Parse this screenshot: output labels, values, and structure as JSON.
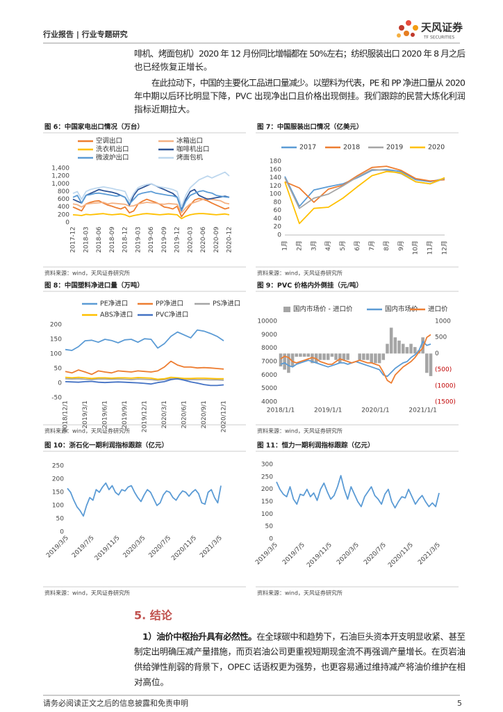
{
  "header": {
    "left": "行业报告 | 行业专题研究",
    "logo_cn": "天风证券",
    "logo_en": "TF SECURITIES"
  },
  "paragraphs": [
    [
      "啡机、烤面包机）2020 年 12 月份同比增幅都在 50%左右；纺织服装出口 2020 年 8 月之后",
      "也已经恢复正增长。"
    ],
    [
      "在此拉动下，中国的主要化工品进口量减少。以塑料为代表，PE 和 PP 净进口量从 2020",
      "年中期以后环比明显下降，PVC 出现净出口且价格出现倒挂。我们跟踪的民营大炼化利润",
      "指标近期拉大。"
    ]
  ],
  "chart_data": [
    {
      "type": "line",
      "title": "图 6：中国家电出口情况（万台）",
      "source": "资料来源：wind，天风证券研究所",
      "categories": [
        "2017-12",
        null,
        null,
        "2018-03",
        null,
        null,
        "2018-06",
        null,
        null,
        "2018-09",
        null,
        null,
        "2018-12",
        null,
        null,
        "2019-03",
        null,
        null,
        "2019-06",
        null,
        null,
        "2019-09",
        null,
        null,
        "2019-12",
        null,
        null,
        "2020-03",
        null,
        null,
        "2020-06",
        null,
        null,
        "2020-09",
        null,
        null,
        "2020-12"
      ],
      "ylim": [
        0,
        1400
      ],
      "yticks": [
        0,
        200,
        400,
        600,
        800,
        {
          "value": 1000,
          "label": "1,000"
        },
        {
          "value": 1200,
          "label": "1,200"
        },
        {
          "value": 1400,
          "label": "1,400"
        }
      ],
      "series": [
        {
          "name": "空调出口",
          "color": "#ed7d31",
          "values": [
            400,
            350,
            300,
            480,
            520,
            550,
            560,
            500,
            450,
            420,
            380,
            350,
            400,
            250,
            300,
            480,
            550,
            600,
            560,
            520,
            470,
            400,
            380,
            350,
            420,
            150,
            300,
            450,
            580,
            620,
            600,
            560,
            500,
            450,
            400,
            350,
            380
          ]
        },
        {
          "name": "冰箱出口",
          "color": "#f4b183",
          "values": [
            480,
            460,
            400,
            470,
            490,
            500,
            510,
            520,
            480,
            500,
            490,
            480,
            470,
            420,
            430,
            480,
            500,
            520,
            510,
            500,
            480,
            470,
            490,
            480,
            470,
            250,
            380,
            480,
            520,
            560,
            600,
            620,
            600,
            580,
            560,
            500,
            480
          ]
        },
        {
          "name": "洗衣机出口",
          "color": "#ffc000",
          "values": [
            200,
            190,
            180,
            210,
            200,
            210,
            220,
            230,
            210,
            200,
            210,
            220,
            200,
            150,
            180,
            200,
            220,
            230,
            220,
            210,
            200,
            210,
            220,
            210,
            200,
            100,
            160,
            200,
            220,
            230,
            230,
            220,
            210,
            200,
            210,
            220,
            200
          ]
        },
        {
          "name": "咖啡机出口",
          "color": "#2f5597",
          "values": [
            600,
            550,
            500,
            700,
            750,
            800,
            850,
            820,
            800,
            780,
            750,
            700,
            650,
            450,
            700,
            850,
            900,
            950,
            1000,
            950,
            900,
            850,
            800,
            750,
            650,
            350,
            600,
            800,
            850,
            700,
            650,
            600,
            620,
            640,
            660,
            680,
            650
          ]
        },
        {
          "name": "微波炉出口",
          "color": "#5b9bd5",
          "values": [
            650,
            700,
            500,
            700,
            720,
            750,
            760,
            740,
            720,
            700,
            680,
            700,
            650,
            480,
            600,
            720,
            760,
            780,
            800,
            760,
            740,
            720,
            700,
            690,
            650,
            300,
            550,
            700,
            750,
            800,
            820,
            780,
            760,
            700,
            680,
            660,
            650
          ]
        },
        {
          "name": "烤面包机",
          "color": "#bdd7ee",
          "values": [
            750,
            800,
            600,
            800,
            850,
            880,
            900,
            920,
            900,
            880,
            850,
            830,
            800,
            550,
            750,
            900,
            950,
            980,
            1000,
            950,
            920,
            900,
            880,
            850,
            800,
            400,
            700,
            900,
            1000,
            1100,
            1150,
            1200,
            1150,
            1200,
            1250,
            1300,
            1200
          ]
        }
      ]
    },
    {
      "type": "line",
      "title": "图 7：中国服装出口情况（亿美元）",
      "source": "资料来源：wind，天风证券研究所",
      "categories": [
        "1月",
        "2月",
        "3月",
        "4月",
        "5月",
        "6月",
        "7月",
        "8月",
        "9月",
        "10月",
        "11月",
        "12月"
      ],
      "ylim": [
        0,
        180
      ],
      "yticks": [
        0,
        20,
        40,
        60,
        80,
        100,
        120,
        140,
        160,
        180
      ],
      "series": [
        {
          "name": "2017",
          "color": "#5b9bd5",
          "values": [
            143,
            70,
            110,
            118,
            125,
            140,
            158,
            160,
            155,
            135,
            130,
            138
          ]
        },
        {
          "name": "2018",
          "color": "#ed7d31",
          "values": [
            130,
            115,
            80,
            112,
            122,
            145,
            165,
            168,
            158,
            138,
            132,
            135
          ]
        },
        {
          "name": "2019",
          "color": "#a5a5a5",
          "values": [
            140,
            65,
            90,
            100,
            120,
            142,
            160,
            158,
            150,
            130,
            125,
            138
          ]
        },
        {
          "name": "2020",
          "color": "#ffc000",
          "values": [
            130,
            28,
            65,
            68,
            90,
            118,
            145,
            155,
            152,
            130,
            125,
            140
          ]
        }
      ]
    },
    {
      "type": "line",
      "title": "图 8：中国塑料净进口量（万吨）",
      "source": "资料来源：wind，天风证券研究所",
      "categories": [
        "2018/12/1",
        null,
        null,
        "2019/3/1",
        null,
        null,
        "2019/6/1",
        null,
        null,
        "2019/9/1",
        null,
        null,
        "2019/12/1",
        null,
        null,
        "2020/3/1",
        null,
        null,
        "2020/6/1",
        null,
        null,
        "2020/9/1",
        null,
        null,
        "2020/12/1"
      ],
      "ylim": [
        -50,
        200
      ],
      "yticks": [
        -50,
        0,
        50,
        100,
        150,
        200
      ],
      "series": [
        {
          "name": "PE净进口",
          "color": "#5b9bd5",
          "values": [
            115,
            112,
            125,
            145,
            147,
            140,
            150,
            146,
            138,
            148,
            150,
            140,
            152,
            150,
            120,
            135,
            160,
            175,
            165,
            155,
            182,
            178,
            170,
            160,
            145
          ]
        },
        {
          "name": "PP净进口",
          "color": "#ed7d31",
          "values": [
            40,
            35,
            45,
            38,
            30,
            42,
            38,
            35,
            42,
            40,
            38,
            42,
            40,
            38,
            42,
            55,
            75,
            62,
            55,
            55,
            52,
            53,
            52,
            50,
            48
          ]
        },
        {
          "name": "PS净进口",
          "color": "#a5a5a5",
          "values": [
            15,
            14,
            15,
            13,
            12,
            14,
            14,
            13,
            14,
            13,
            12,
            14,
            13,
            12,
            10,
            12,
            15,
            14,
            12,
            12,
            12,
            12,
            11,
            11,
            10
          ]
        },
        {
          "name": "ABS净进口",
          "color": "#ffc000",
          "values": [
            20,
            18,
            20,
            18,
            16,
            18,
            18,
            17,
            18,
            18,
            17,
            19,
            18,
            17,
            13,
            15,
            20,
            18,
            16,
            16,
            17,
            17,
            16,
            15,
            15
          ]
        },
        {
          "name": "PVC净进口",
          "color": "#4472c4",
          "values": [
            5,
            4,
            3,
            5,
            6,
            3,
            2,
            3,
            4,
            3,
            2,
            1,
            -1,
            -3,
            2,
            5,
            12,
            15,
            10,
            4,
            0,
            -5,
            -8,
            -8,
            -6
          ]
        }
      ]
    },
    {
      "type": "combo",
      "title": "图 9：PVC 价格内外倒挂（元/吨）",
      "source": "资料来源：wind，天风证券研究所",
      "categories": [
        "2018/1/1",
        null,
        null,
        null,
        null,
        null,
        null,
        null,
        null,
        null,
        null,
        null,
        "2019/1/1",
        null,
        null,
        null,
        null,
        null,
        null,
        null,
        null,
        null,
        null,
        null,
        "2020/1/1",
        null,
        null,
        null,
        null,
        null,
        null,
        null,
        null,
        null,
        null,
        null,
        "2021/1/1",
        null,
        null
      ],
      "ylim": [
        4000,
        10000
      ],
      "yticks": [
        4000,
        5000,
        6000,
        7000,
        8000,
        9000,
        10000
      ],
      "y2lim": [
        -1500,
        1000
      ],
      "y2ticks": [
        {
          "value": -1500,
          "label": "(1500)"
        },
        {
          "value": -1000,
          "label": "(1000)"
        },
        {
          "value": -500,
          "label": "(500)"
        },
        0,
        500,
        1000
      ],
      "y2tick_negative_color": "#c00000",
      "series": [
        {
          "name": "国内市场价 - 进口价",
          "type": "bar",
          "axis": "y2",
          "color": "#a5a5a5",
          "values": [
            -400,
            -500,
            -600,
            -400,
            -100,
            -100,
            -100,
            -100,
            -300,
            -300,
            -200,
            -200,
            -200,
            -100,
            -200,
            -300,
            -200,
            -200,
            0,
            0,
            -200,
            -200,
            -200,
            -300,
            -300,
            -300,
            -200,
            300,
            800,
            500,
            400,
            300,
            200,
            300,
            200,
            100,
            500,
            -600,
            -700
          ]
        },
        {
          "name": "国内市场价",
          "color": "#5b9bd5",
          "values": [
            6800,
            6900,
            6700,
            6600,
            6800,
            6900,
            7000,
            7100,
            7000,
            6900,
            6800,
            6700,
            6600,
            6700,
            6800,
            6900,
            6900,
            6800,
            6900,
            7000,
            6900,
            6800,
            6700,
            6600,
            6500,
            6400,
            6000,
            5900,
            6200,
            6500,
            6700,
            6900,
            7000,
            7300,
            7500,
            7800,
            8500,
            8200,
            8300
          ]
        },
        {
          "name": "进口价",
          "color": "#ed7d31",
          "values": [
            7200,
            7400,
            7300,
            7000,
            6900,
            7000,
            7100,
            7200,
            7300,
            7200,
            7000,
            6900,
            6800,
            6800,
            7000,
            7200,
            7100,
            7000,
            6900,
            7000,
            7100,
            7000,
            6900,
            6900,
            6800,
            6700,
            6200,
            5600,
            5400,
            6000,
            6300,
            6600,
            6800,
            7000,
            7300,
            7700,
            8000,
            8800,
            9000
          ]
        }
      ]
    },
    {
      "type": "line",
      "title": "图 10：浙石化一期利润指标跟踪（亿元）",
      "source": "资料来源：wind，天风证券研究所",
      "categories": [
        "2019/3/5",
        null,
        null,
        null,
        null,
        null,
        null,
        null,
        "2019/7/5",
        null,
        null,
        null,
        null,
        null,
        null,
        null,
        "2019/11/5",
        null,
        null,
        null,
        null,
        null,
        null,
        null,
        "2020/3/5",
        null,
        null,
        null,
        null,
        null,
        null,
        null,
        "2020/7/5",
        null,
        null,
        null,
        null,
        null,
        null,
        null,
        "2020/11/5",
        null,
        null,
        null,
        null,
        null,
        null,
        null,
        "2021/3/5"
      ],
      "ylim": [
        0,
        250
      ],
      "yticks": [
        0,
        50,
        100,
        150,
        200,
        250
      ],
      "series": [
        {
          "color": "#5b9bd5",
          "values": [
            165,
            150,
            120,
            95,
            80,
            60,
            100,
            130,
            120,
            160,
            150,
            170,
            185,
            160,
            175,
            150,
            140,
            160,
            155,
            170,
            175,
            150,
            130,
            115,
            140,
            160,
            150,
            125,
            100,
            110,
            140,
            155,
            150,
            130,
            120,
            140,
            155,
            150,
            135,
            150,
            160,
            145,
            110,
            105,
            150,
            160,
            130,
            110,
            175
          ]
        }
      ]
    },
    {
      "type": "line",
      "title": "图 11：恒力一期利润指标跟踪（亿元）",
      "source": "资料来源：wind，天风证券研究所",
      "categories": [
        "2019/3/5",
        null,
        null,
        null,
        null,
        null,
        null,
        null,
        "2019/7/5",
        null,
        null,
        null,
        null,
        null,
        null,
        null,
        "2019/11/5",
        null,
        null,
        null,
        null,
        null,
        null,
        null,
        "2020/3/5",
        null,
        null,
        null,
        null,
        null,
        null,
        null,
        "2020/7/5",
        null,
        null,
        null,
        null,
        null,
        null,
        null,
        "2020/11/5",
        null,
        null,
        null,
        null,
        null,
        null,
        null,
        "2021/3/5"
      ],
      "ylim": [
        0,
        300
      ],
      "yticks": [
        0,
        50,
        100,
        150,
        200,
        250,
        300
      ],
      "series": [
        {
          "color": "#5b9bd5",
          "values": [
            230,
            200,
            180,
            170,
            210,
            160,
            140,
            180,
            175,
            200,
            170,
            185,
            155,
            200,
            225,
            190,
            160,
            175,
            210,
            255,
            200,
            160,
            210,
            180,
            150,
            130,
            170,
            190,
            210,
            175,
            160,
            140,
            180,
            200,
            150,
            125,
            150,
            170,
            165,
            200,
            170,
            140,
            160,
            175,
            150,
            130,
            145,
            130,
            185
          ]
        }
      ]
    }
  ],
  "section": {
    "title": "5. 结论",
    "lead": "1）油价中枢抬升具有必然性。",
    "lines": [
      "在全球碳中和趋势下，石油巨头资本开支明显收紧、甚至",
      "制定出明确压减产量措施，而页岩油公司更重视短期现金流不再强调产量增长。在页岩油",
      "供给弹性削弱的背景下，OPEC 话语权更为强势，也更容易通过维持减产将油价维护在相",
      "对高位。"
    ]
  },
  "footer": {
    "disclaimer": "请务必阅读正文之后的信息披露和免责申明",
    "page": "5"
  }
}
